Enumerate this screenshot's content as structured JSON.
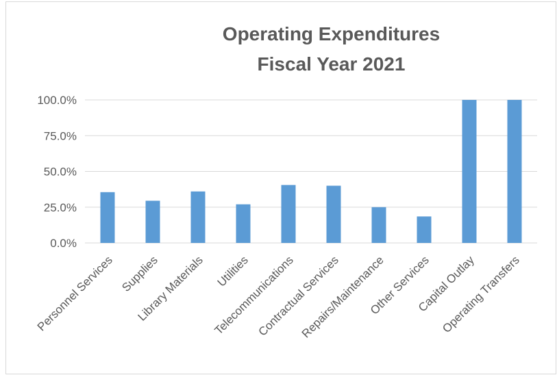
{
  "chart_data": {
    "type": "bar",
    "title_lines": [
      "Operating Expenditures",
      "Fiscal Year 2021"
    ],
    "categories": [
      "Personnel Services",
      "Supplies",
      "Library Materials",
      "Utilities",
      "Telecommunications",
      "Contractual Services",
      "Repairs/Maintenance",
      "Other Services",
      "Capital Outlay",
      "Operating Transfers"
    ],
    "values": [
      35.5,
      29.5,
      36.0,
      27.0,
      40.5,
      40.0,
      25.0,
      18.5,
      100.0,
      100.0
    ],
    "y_ticks": [
      "0.0%",
      "25.0%",
      "50.0%",
      "75.0%",
      "100.0%"
    ],
    "ylim": [
      0,
      100
    ],
    "grid": true,
    "bar_color": "#5b9bd5",
    "grid_color": "#d9d9d9",
    "legend": "none"
  }
}
